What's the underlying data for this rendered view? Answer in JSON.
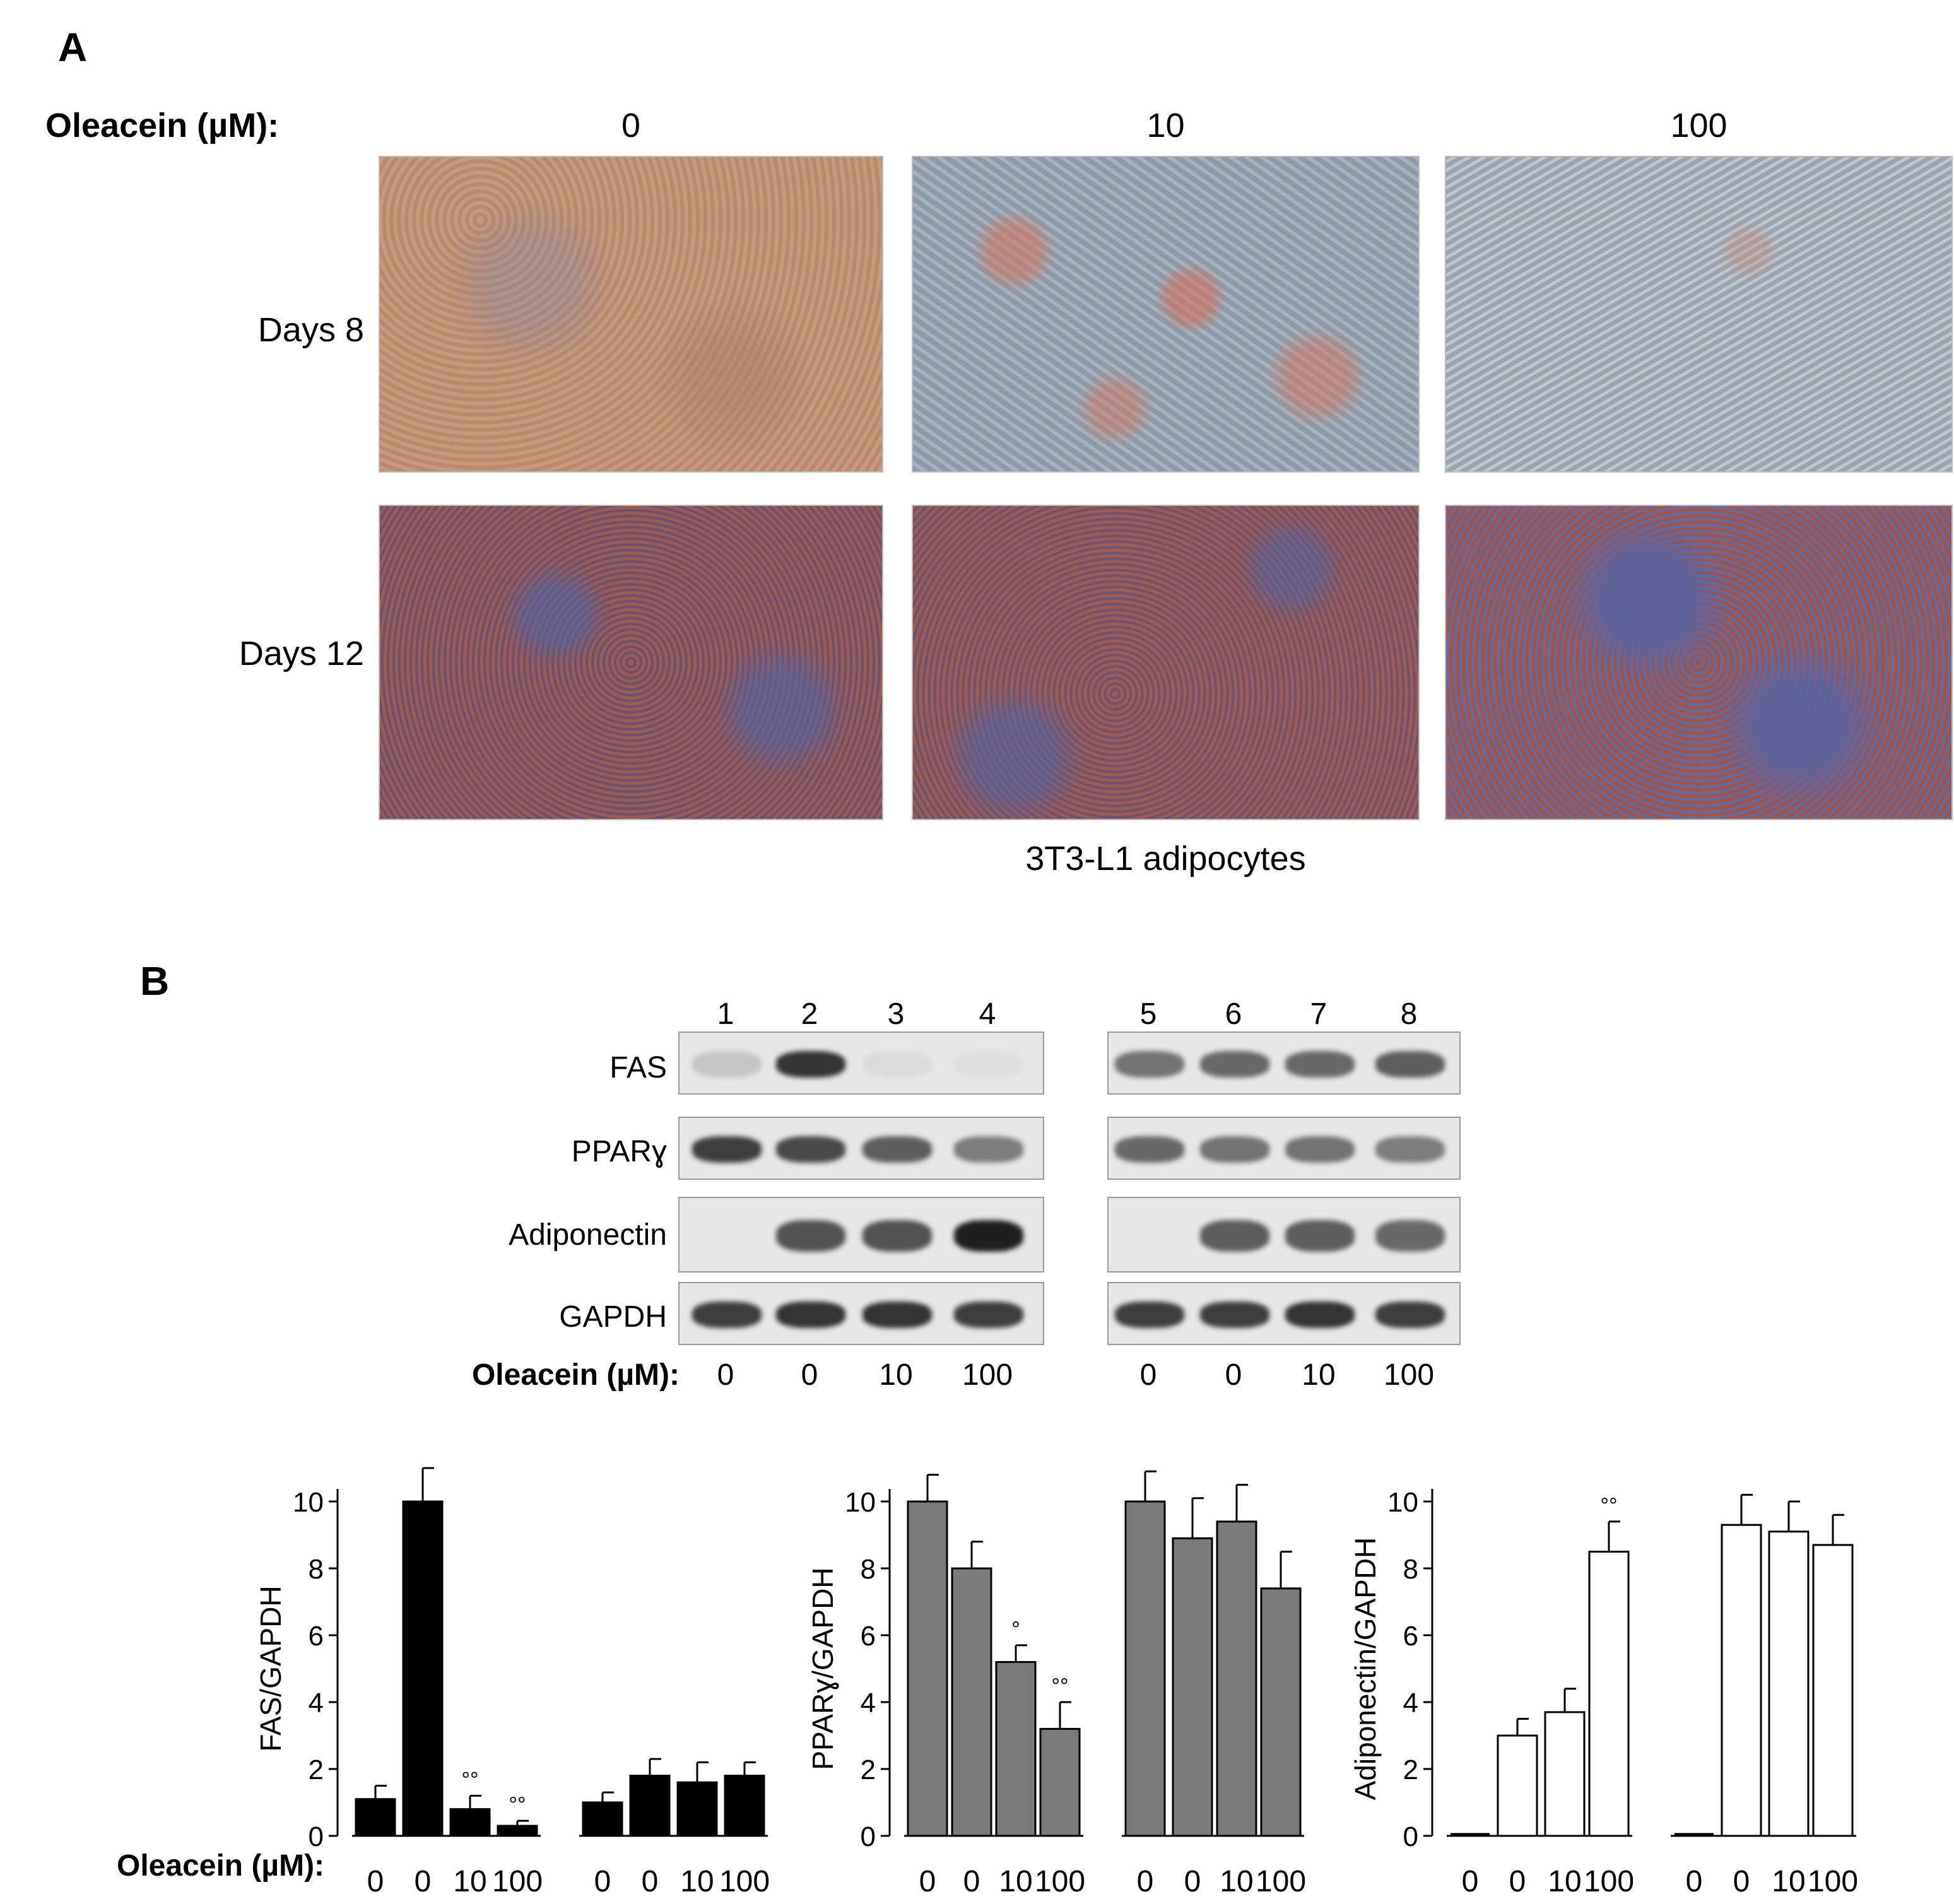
{
  "panel_a": {
    "letter": "A",
    "treatment_label": "Oleacein (µM):",
    "concentrations": [
      "0",
      "10",
      "100"
    ],
    "rows": [
      "Days 8",
      "Days 12"
    ],
    "caption": "3T3-L1 adipocytes"
  },
  "panel_b": {
    "letter": "B",
    "lanes": [
      "1",
      "2",
      "3",
      "4",
      "5",
      "6",
      "7",
      "8"
    ],
    "blot_labels": [
      "FAS",
      "PPARɣ",
      "Adiponectin",
      "GAPDH"
    ],
    "treatment_label": "Oleacein (µM):",
    "lane_doses": [
      "0",
      "0",
      "10",
      "100",
      "0",
      "0",
      "10",
      "100"
    ],
    "band_intensity": {
      "FAS": [
        0.15,
        0.85,
        0.05,
        0.04,
        0.55,
        0.6,
        0.6,
        0.65
      ],
      "PPARɣ": [
        0.8,
        0.75,
        0.65,
        0.5,
        0.6,
        0.55,
        0.55,
        0.5
      ],
      "Adiponectin": [
        0.0,
        0.7,
        0.7,
        0.95,
        0.0,
        0.65,
        0.65,
        0.6
      ],
      "GAPDH": [
        0.8,
        0.85,
        0.85,
        0.8,
        0.8,
        0.8,
        0.85,
        0.8
      ]
    },
    "colors": {
      "fas_bar": "#000000",
      "ppar_bar": "#7a7a7a",
      "adipo_bar": "#ffffff"
    }
  },
  "chart_data": [
    {
      "type": "bar",
      "ylabel": "FAS/GAPDH",
      "xlabel": "Oleacein (µM):",
      "categories": [
        "0",
        "0",
        "10",
        "100",
        "0",
        "0",
        "10",
        "100"
      ],
      "values": [
        1.1,
        10.0,
        0.8,
        0.3,
        1.0,
        1.8,
        1.6,
        1.8
      ],
      "errors": [
        0.4,
        1.0,
        0.4,
        0.15,
        0.3,
        0.5,
        0.6,
        0.4
      ],
      "significance": [
        "",
        "",
        "°°",
        "°°",
        "",
        "",
        "",
        ""
      ],
      "yticks": [
        "0",
        "2",
        "4",
        "6",
        "8",
        "10"
      ],
      "ylim": [
        0,
        10
      ],
      "bar_color": "#000000"
    },
    {
      "type": "bar",
      "ylabel": "PPARɣ/GAPDH",
      "categories": [
        "0",
        "0",
        "10",
        "100",
        "0",
        "0",
        "10",
        "100"
      ],
      "values": [
        10.0,
        8.0,
        5.2,
        3.2,
        10.0,
        8.9,
        9.4,
        7.4
      ],
      "errors": [
        0.8,
        0.8,
        0.5,
        0.8,
        0.9,
        1.2,
        1.1,
        1.1
      ],
      "significance": [
        "",
        "",
        "°",
        "°°",
        "",
        "",
        "",
        ""
      ],
      "yticks": [
        "0",
        "2",
        "4",
        "6",
        "8",
        "10"
      ],
      "ylim": [
        0,
        10
      ],
      "bar_color": "#7a7a7a"
    },
    {
      "type": "bar",
      "ylabel": "Adiponectin/GAPDH",
      "categories": [
        "0",
        "0",
        "10",
        "100",
        "0",
        "0",
        "10",
        "100"
      ],
      "values": [
        0.0,
        3.0,
        3.7,
        8.5,
        0.0,
        9.3,
        9.1,
        8.7
      ],
      "errors": [
        0.0,
        0.5,
        0.7,
        0.9,
        0.0,
        0.9,
        0.9,
        0.9
      ],
      "significance": [
        "",
        "",
        "",
        "°°",
        "",
        "",
        "",
        ""
      ],
      "yticks": [
        "0",
        "2",
        "4",
        "6",
        "8",
        "10"
      ],
      "ylim": [
        0,
        10
      ],
      "bar_color": "#ffffff"
    }
  ]
}
